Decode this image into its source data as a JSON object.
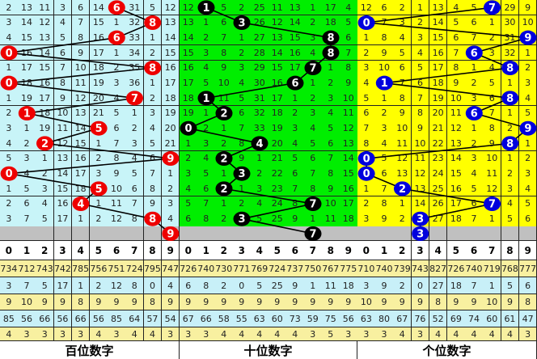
{
  "chart_data": {
    "type": "table",
    "column_digits": [
      "0",
      "1",
      "2",
      "3",
      "4",
      "5",
      "6",
      "7",
      "8",
      "9"
    ],
    "panels": [
      {
        "title": "百位数字",
        "grid_color": "#c8f4f8",
        "ball_color": "#ee0000",
        "winning_digits": [
          6,
          8,
          6,
          0,
          8,
          0,
          7,
          1,
          5,
          2,
          9,
          0,
          5,
          4,
          8,
          9
        ],
        "rows": [
          [
            2,
            13,
            11,
            3,
            6,
            14,
            6,
            31,
            5,
            12
          ],
          [
            3,
            14,
            12,
            4,
            7,
            15,
            1,
            32,
            8,
            13
          ],
          [
            4,
            15,
            13,
            5,
            8,
            16,
            6,
            33,
            1,
            14
          ],
          [
            0,
            16,
            14,
            6,
            9,
            17,
            1,
            34,
            2,
            15
          ],
          [
            1,
            17,
            15,
            7,
            10,
            18,
            2,
            35,
            8,
            16
          ],
          [
            0,
            18,
            16,
            8,
            11,
            19,
            3,
            36,
            1,
            17
          ],
          [
            1,
            19,
            17,
            9,
            12,
            20,
            4,
            7,
            2,
            18
          ],
          [
            2,
            1,
            18,
            10,
            13,
            21,
            5,
            1,
            3,
            19
          ],
          [
            3,
            1,
            19,
            11,
            14,
            5,
            6,
            2,
            4,
            20
          ],
          [
            4,
            2,
            2,
            12,
            15,
            1,
            7,
            3,
            5,
            21
          ],
          [
            5,
            3,
            1,
            13,
            16,
            2,
            8,
            4,
            6,
            9
          ],
          [
            0,
            4,
            2,
            14,
            17,
            3,
            9,
            5,
            7,
            1
          ],
          [
            1,
            5,
            3,
            15,
            18,
            5,
            10,
            6,
            8,
            2
          ],
          [
            2,
            6,
            4,
            16,
            4,
            1,
            11,
            7,
            9,
            3
          ],
          [
            3,
            7,
            5,
            17,
            1,
            2,
            12,
            8,
            8,
            4
          ]
        ],
        "stats": [
          [
            734,
            712,
            743,
            742,
            785,
            756,
            751,
            724,
            795,
            747
          ],
          [
            3,
            7,
            5,
            17,
            1,
            2,
            12,
            8,
            0,
            4
          ],
          [
            9,
            10,
            9,
            9,
            8,
            9,
            9,
            9,
            8,
            9
          ],
          [
            85,
            56,
            66,
            56,
            66,
            56,
            85,
            64,
            57,
            54
          ],
          [
            4,
            3,
            3,
            3,
            3,
            4,
            3,
            4,
            4,
            3
          ]
        ]
      },
      {
        "title": "十位数字",
        "grid_color": "#00ee00",
        "ball_color": "#000000",
        "winning_digits": [
          1,
          3,
          8,
          8,
          7,
          6,
          1,
          2,
          0,
          4,
          2,
          3,
          2,
          7,
          3,
          7
        ],
        "rows": [
          [
            12,
            1,
            5,
            2,
            25,
            11,
            13,
            1,
            17,
            4
          ],
          [
            13,
            1,
            6,
            3,
            26,
            12,
            14,
            2,
            18,
            5
          ],
          [
            14,
            2,
            7,
            1,
            27,
            13,
            15,
            3,
            8,
            6
          ],
          [
            15,
            3,
            8,
            2,
            28,
            14,
            16,
            4,
            8,
            7
          ],
          [
            16,
            4,
            9,
            3,
            29,
            15,
            17,
            7,
            1,
            8
          ],
          [
            17,
            5,
            10,
            4,
            30,
            16,
            6,
            1,
            2,
            9
          ],
          [
            18,
            1,
            11,
            5,
            31,
            17,
            1,
            2,
            3,
            10
          ],
          [
            19,
            1,
            2,
            6,
            32,
            18,
            2,
            3,
            4,
            11
          ],
          [
            0,
            2,
            1,
            7,
            33,
            19,
            3,
            4,
            5,
            12
          ],
          [
            1,
            3,
            2,
            8,
            4,
            20,
            4,
            5,
            6,
            13
          ],
          [
            2,
            4,
            2,
            9,
            1,
            21,
            5,
            6,
            7,
            14
          ],
          [
            3,
            5,
            1,
            3,
            2,
            22,
            6,
            7,
            8,
            15
          ],
          [
            4,
            6,
            2,
            1,
            3,
            23,
            7,
            8,
            9,
            16
          ],
          [
            5,
            7,
            1,
            2,
            4,
            24,
            8,
            7,
            10,
            17
          ],
          [
            6,
            8,
            2,
            3,
            5,
            25,
            9,
            1,
            11,
            18
          ]
        ],
        "stats": [
          [
            726,
            740,
            730,
            771,
            769,
            724,
            737,
            750,
            767,
            775
          ],
          [
            6,
            8,
            2,
            0,
            5,
            25,
            9,
            1,
            11,
            18
          ],
          [
            9,
            9,
            9,
            9,
            9,
            9,
            9,
            9,
            9,
            9
          ],
          [
            67,
            66,
            58,
            55,
            63,
            60,
            73,
            59,
            75,
            56
          ],
          [
            3,
            3,
            4,
            4,
            4,
            4,
            4,
            3,
            5,
            3
          ]
        ]
      },
      {
        "title": "个位数字",
        "grid_color": "#ffff00",
        "ball_color": "#0000dd",
        "winning_digits": [
          7,
          0,
          9,
          6,
          8,
          1,
          8,
          6,
          9,
          8,
          0,
          0,
          2,
          7,
          3,
          3
        ],
        "rows": [
          [
            12,
            6,
            2,
            1,
            13,
            4,
            5,
            7,
            29,
            9
          ],
          [
            0,
            7,
            3,
            2,
            14,
            5,
            6,
            1,
            30,
            10
          ],
          [
            1,
            8,
            4,
            3,
            15,
            6,
            7,
            2,
            31,
            9
          ],
          [
            2,
            9,
            5,
            4,
            16,
            7,
            6,
            3,
            32,
            1
          ],
          [
            3,
            10,
            6,
            5,
            17,
            8,
            1,
            4,
            8,
            2
          ],
          [
            4,
            1,
            7,
            6,
            18,
            9,
            2,
            5,
            1,
            3
          ],
          [
            5,
            1,
            8,
            7,
            19,
            10,
            3,
            6,
            8,
            4
          ],
          [
            6,
            2,
            9,
            8,
            20,
            11,
            6,
            7,
            1,
            5
          ],
          [
            7,
            3,
            10,
            9,
            21,
            12,
            1,
            8,
            2,
            9
          ],
          [
            8,
            4,
            11,
            10,
            22,
            13,
            2,
            9,
            8,
            1
          ],
          [
            0,
            5,
            12,
            11,
            23,
            14,
            3,
            10,
            1,
            2
          ],
          [
            0,
            6,
            13,
            12,
            24,
            15,
            4,
            11,
            2,
            3
          ],
          [
            1,
            7,
            2,
            13,
            25,
            16,
            5,
            12,
            3,
            4
          ],
          [
            2,
            8,
            1,
            14,
            26,
            17,
            6,
            7,
            4,
            5
          ],
          [
            3,
            9,
            2,
            3,
            27,
            18,
            7,
            1,
            5,
            6
          ]
        ],
        "stats": [
          [
            710,
            740,
            739,
            743,
            827,
            726,
            740,
            719,
            768,
            777
          ],
          [
            3,
            9,
            2,
            0,
            27,
            18,
            7,
            1,
            5,
            6
          ],
          [
            10,
            9,
            9,
            9,
            8,
            9,
            9,
            10,
            9,
            8
          ],
          [
            63,
            80,
            67,
            76,
            52,
            69,
            74,
            60,
            61,
            47
          ],
          [
            3,
            3,
            4,
            3,
            4,
            4,
            4,
            4,
            4,
            3
          ]
        ]
      }
    ],
    "stats_row_colors": [
      "#f8f0a0",
      "#c8f0f8",
      "#f8f0a0",
      "#c8f0f8",
      "#f8f0a0"
    ],
    "gray_row_color": "#c0c0c0"
  }
}
